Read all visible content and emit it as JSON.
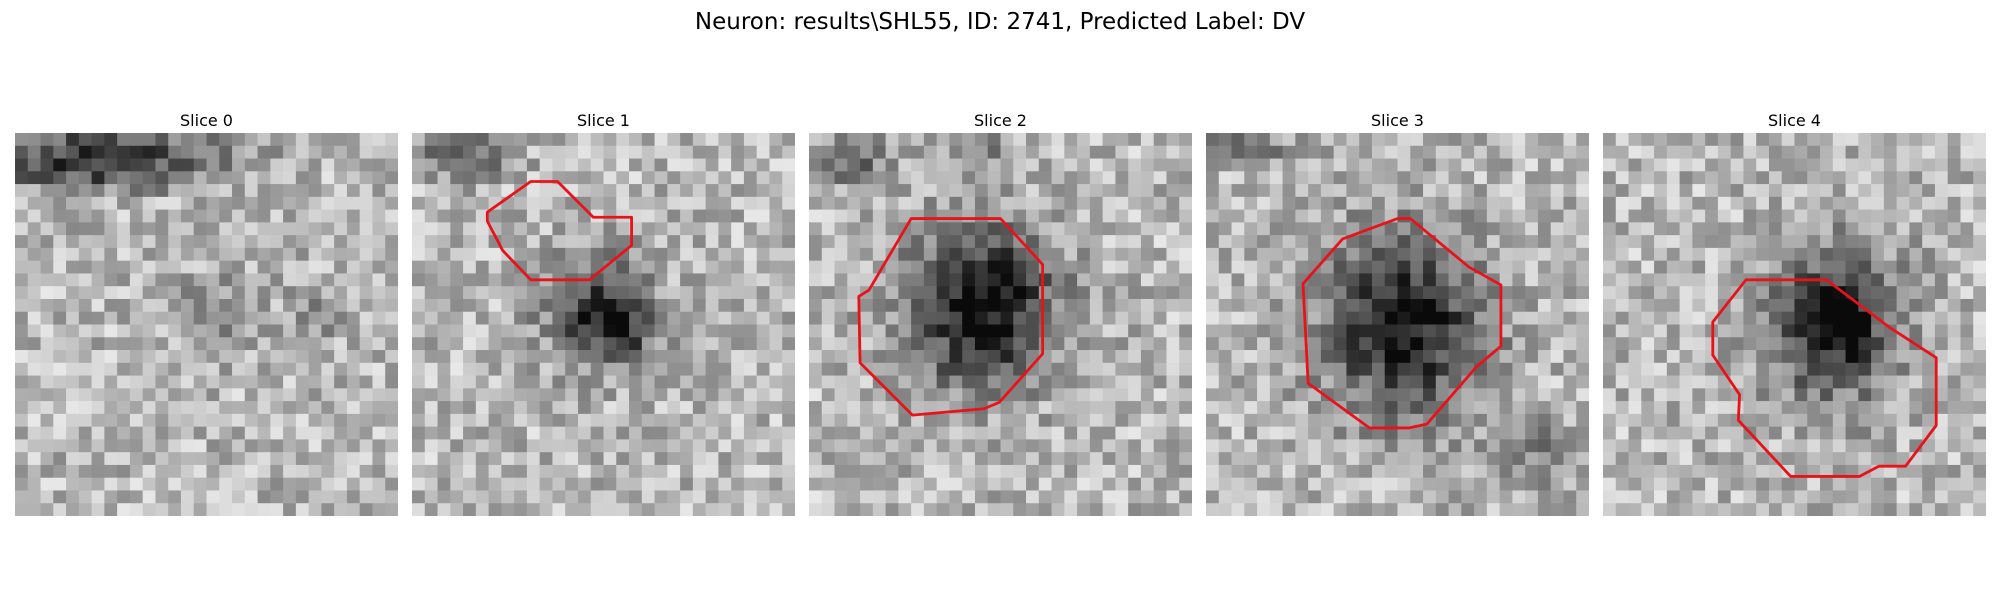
{
  "figure": {
    "title": "Neuron: results\\SHL55, ID: 2741, Predicted Label: DV"
  },
  "colors": {
    "contour": "#e8131a",
    "background": "#ffffff"
  },
  "panels": [
    {
      "title": "Slice 0",
      "has_contour": false
    },
    {
      "title": "Slice 1",
      "has_contour": true
    },
    {
      "title": "Slice 2",
      "has_contour": true
    },
    {
      "title": "Slice 3",
      "has_contour": true
    },
    {
      "title": "Slice 4",
      "has_contour": true
    }
  ]
}
